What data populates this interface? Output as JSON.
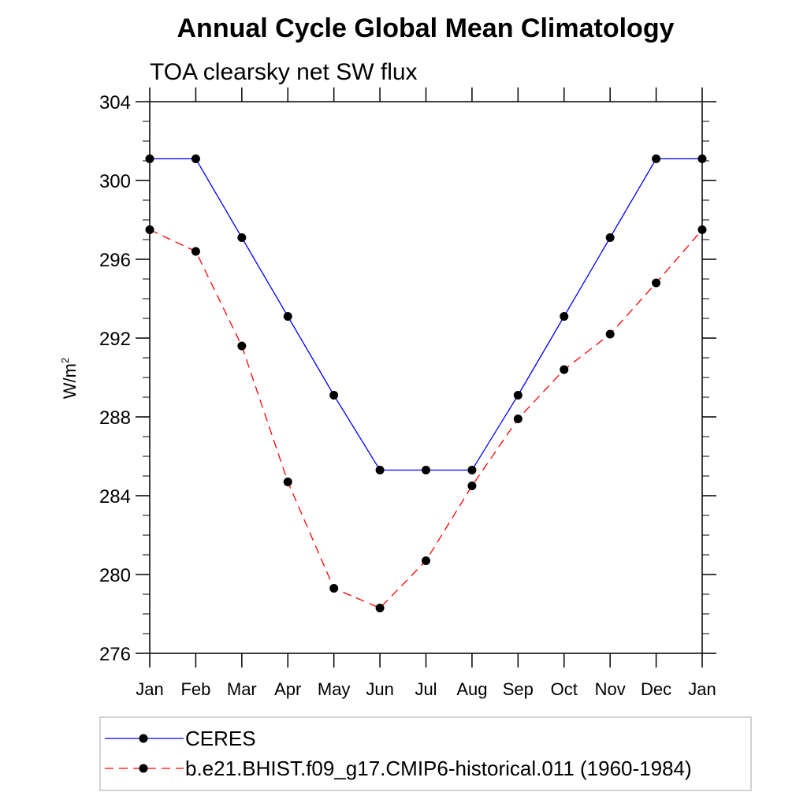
{
  "chart_data": {
    "type": "line",
    "title": "Annual Cycle Global Mean Climatology",
    "subtitle": "TOA clearsky net SW flux",
    "ylabel": "W/m",
    "ylabel_sup": "2",
    "xlabel": "",
    "categories": [
      "Jan",
      "Feb",
      "Mar",
      "Apr",
      "May",
      "Jun",
      "Jul",
      "Aug",
      "Sep",
      "Oct",
      "Nov",
      "Dec",
      "Jan"
    ],
    "ylim": [
      276,
      304
    ],
    "yticks": [
      276,
      280,
      284,
      288,
      292,
      296,
      300,
      304
    ],
    "grid": false,
    "legend_position": "bottom",
    "series": [
      {
        "name": "CERES",
        "color": "#0000ff",
        "dash": "solid",
        "marker": "filled-circle",
        "values": [
          301.1,
          301.1,
          297.1,
          293.1,
          289.1,
          285.3,
          285.3,
          285.3,
          289.1,
          293.1,
          297.1,
          301.1,
          301.1
        ]
      },
      {
        "name": "b.e21.BHIST.f09_g17.CMIP6-historical.011 (1960-1984)",
        "color": "#ff0000",
        "dash": "dashed",
        "marker": "filled-circle",
        "values": [
          297.5,
          296.4,
          291.6,
          284.7,
          279.3,
          278.3,
          280.7,
          284.5,
          287.9,
          290.4,
          292.2,
          294.8,
          297.5
        ]
      }
    ]
  }
}
